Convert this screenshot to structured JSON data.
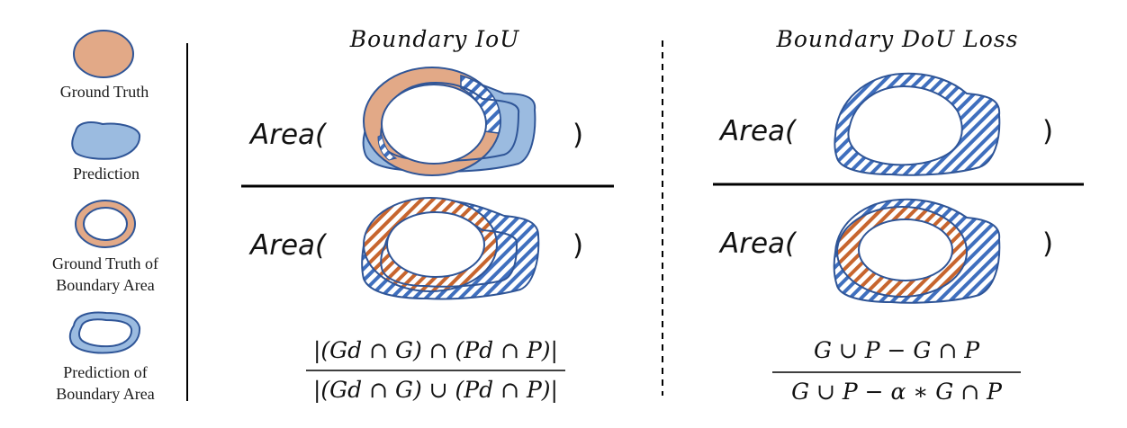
{
  "legend": {
    "items": [
      {
        "label_lines": [
          "Ground Truth"
        ]
      },
      {
        "label_lines": [
          "Prediction"
        ]
      },
      {
        "label_lines": [
          "Ground Truth of",
          "Boundary Area"
        ]
      },
      {
        "label_lines": [
          "Prediction of",
          "Boundary Area"
        ]
      }
    ]
  },
  "colors": {
    "gt_fill": "#E2A987",
    "gt_hatch": "#C7652E",
    "pred_fill": "#9BBBE0",
    "pred_stroke": "#2F5597",
    "pred_hatch": "#3F6FBE"
  },
  "panels": {
    "iou": {
      "title": "Boundary IoU",
      "numerator_area": "Area(",
      "numerator_close": ")",
      "denominator_area": "Area(",
      "denominator_close": ")",
      "formula_numerator": "|(Gd ∩ G) ∩ (Pd ∩ P)|",
      "formula_denominator": "|(Gd ∩ G) ∪ (Pd ∩ P)|"
    },
    "dou": {
      "title": "Boundary DoU Loss",
      "numerator_area": "Area(",
      "numerator_close": ")",
      "denominator_area": "Area(",
      "denominator_close": ")",
      "formula_numerator": "G ∪ P − G ∩ P",
      "formula_denominator": "G ∪ P − α ∗ G ∩ P"
    }
  }
}
